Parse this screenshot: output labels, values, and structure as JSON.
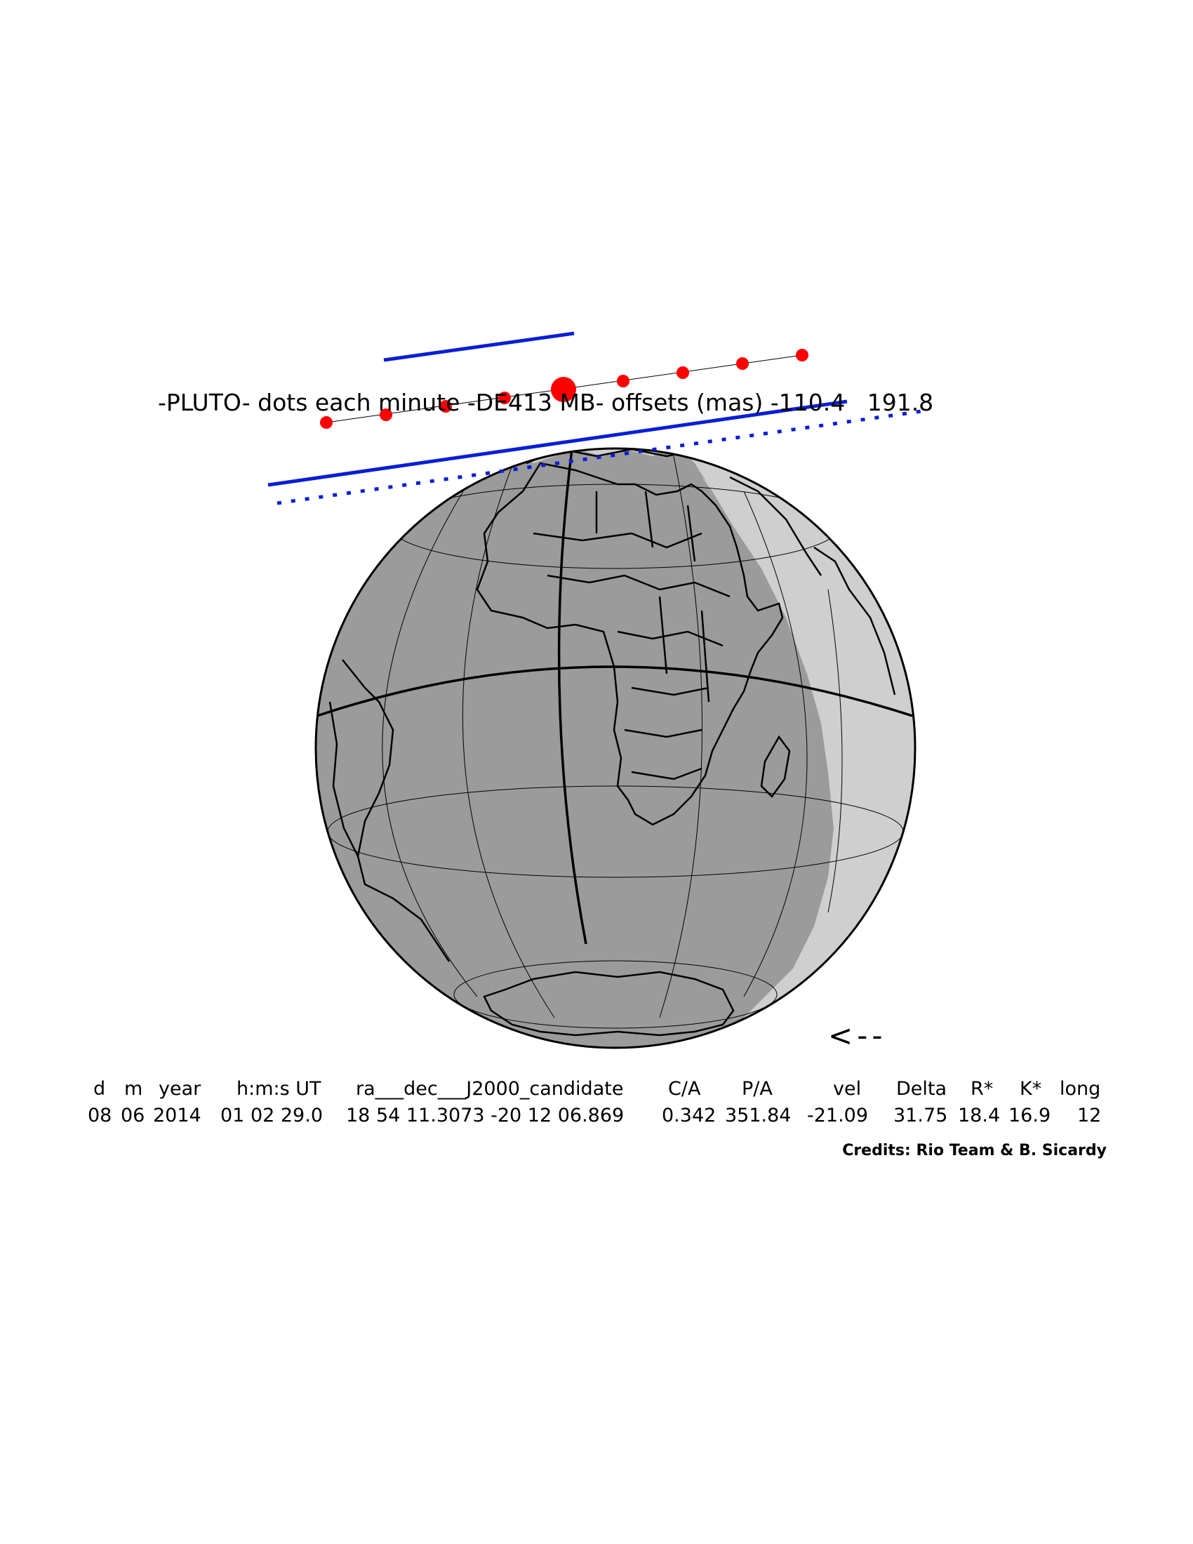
{
  "title": "-PLUTO- dots each minute -DE413 MB- offsets (mas) -110.4   191.8",
  "arrow": "<--",
  "table": {
    "headers": [
      "d",
      "m",
      "year",
      "h:m:s UT",
      "ra___dec___J2000_candidate",
      "C/A",
      "P/A",
      "vel",
      "Delta",
      "R*",
      "K*",
      "long"
    ],
    "values": [
      "08",
      "06",
      "2014",
      "01 02 29.0",
      "18 54 11.3073 -20 12 06.869",
      "0.342",
      "351.84",
      "-21.09",
      "31.75",
      "18.4",
      "16.9",
      "12"
    ]
  },
  "credits": "Credits: Rio Team & B. Sicardy",
  "colors": {
    "background": "#ffffff",
    "night": "#9b9b9b",
    "twilight": "#cfcfcf",
    "limit_lines": "#0a1ed6",
    "centerline_dots": "#ff0000",
    "coastlines": "#000000"
  },
  "map": {
    "projection": "orthographic",
    "visible_region": [
      "Africa",
      "Europe",
      "South America",
      "Antarctica",
      "Madagascar"
    ],
    "marks": [
      "equator",
      "central meridian",
      "shadow limit (solid)",
      "shadow limit (dotted)",
      "minute dots",
      "closest approach dot"
    ]
  }
}
